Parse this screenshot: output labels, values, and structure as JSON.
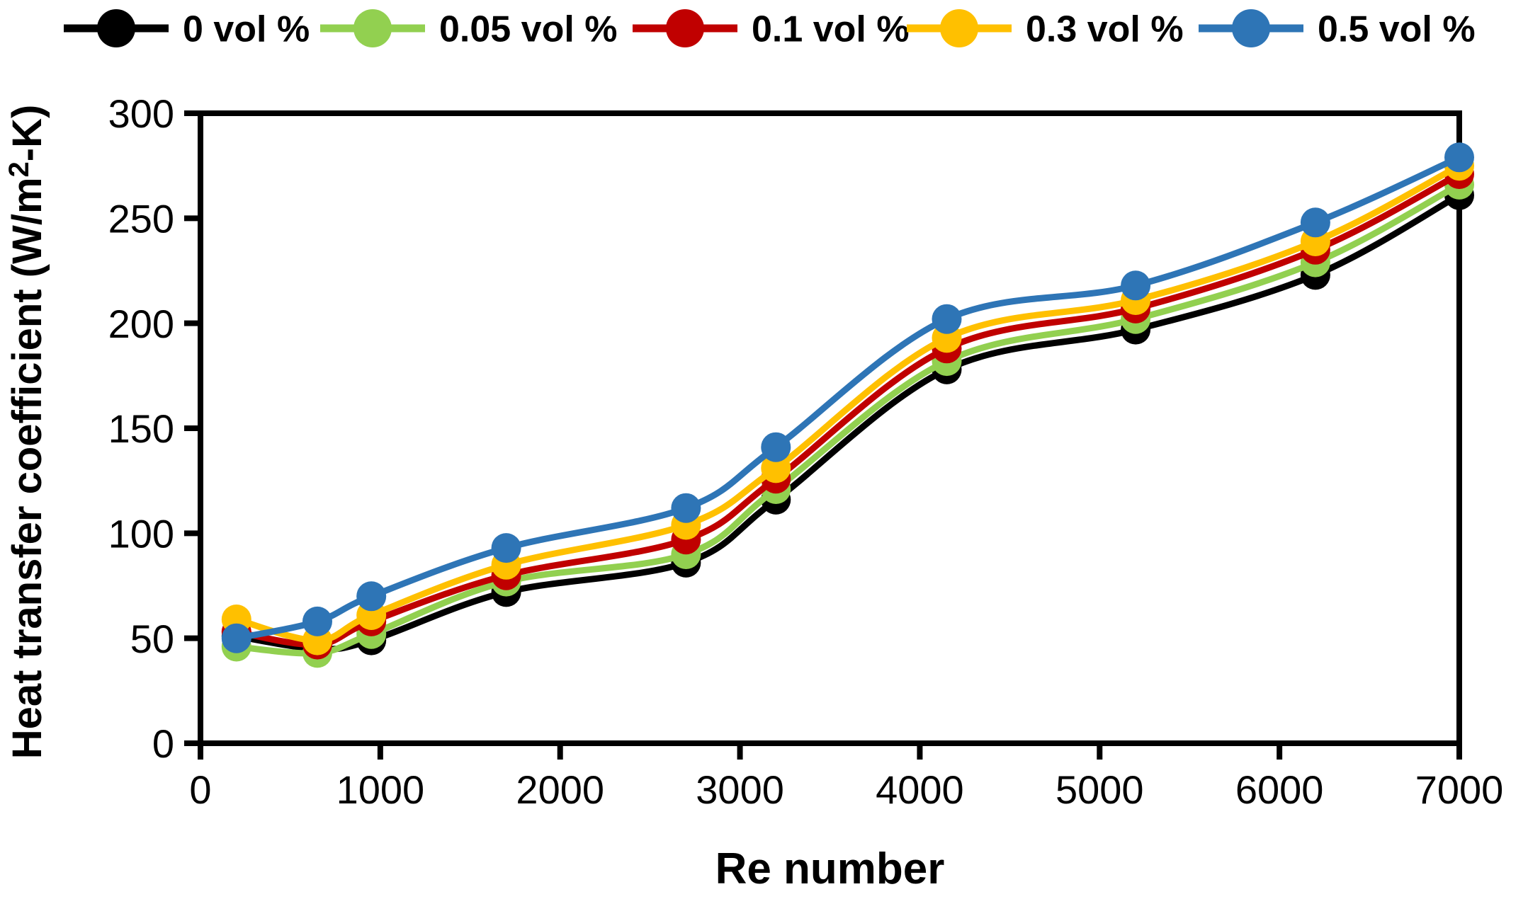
{
  "chart_data": {
    "type": "line",
    "title": "",
    "xlabel": "Re number",
    "ylabel": "Heat transfer coefficient (W/m²-K)",
    "ylabel_parts": {
      "pre": "Heat transfer coefficient (W/m",
      "sup": "2",
      "post": "-K)"
    },
    "x": [
      200,
      650,
      950,
      1700,
      2700,
      3200,
      4150,
      5200,
      6200,
      7000
    ],
    "series": [
      {
        "name": "0 vol %",
        "color": "#000000",
        "values": [
          51,
          45,
          49,
          72,
          86,
          116,
          178,
          197,
          223,
          261
        ]
      },
      {
        "name": "0.05 vol %",
        "color": "#92D050",
        "values": [
          46,
          43,
          52,
          77,
          90,
          121,
          182,
          202,
          229,
          266
        ]
      },
      {
        "name": "0.1 vol %",
        "color": "#C00000",
        "values": [
          53,
          47,
          58,
          80,
          97,
          126,
          188,
          207,
          235,
          271
        ]
      },
      {
        "name": "0.3 vol %",
        "color": "#FFC000",
        "values": [
          59,
          49,
          61,
          85,
          104,
          131,
          193,
          211,
          239,
          275
        ]
      },
      {
        "name": "0.5 vol %",
        "color": "#2E75B6",
        "values": [
          50,
          58,
          70,
          93,
          112,
          141,
          202,
          218,
          248,
          279
        ]
      }
    ],
    "xlim": [
      0,
      7000
    ],
    "ylim": [
      0,
      300
    ],
    "x_ticks": [
      0,
      1000,
      2000,
      3000,
      4000,
      5000,
      6000,
      7000
    ],
    "y_ticks": [
      0,
      50,
      100,
      150,
      200,
      250,
      300
    ],
    "grid": false,
    "smooth": true,
    "legend_position": "top",
    "frame": true,
    "axis_color": "#000000"
  }
}
